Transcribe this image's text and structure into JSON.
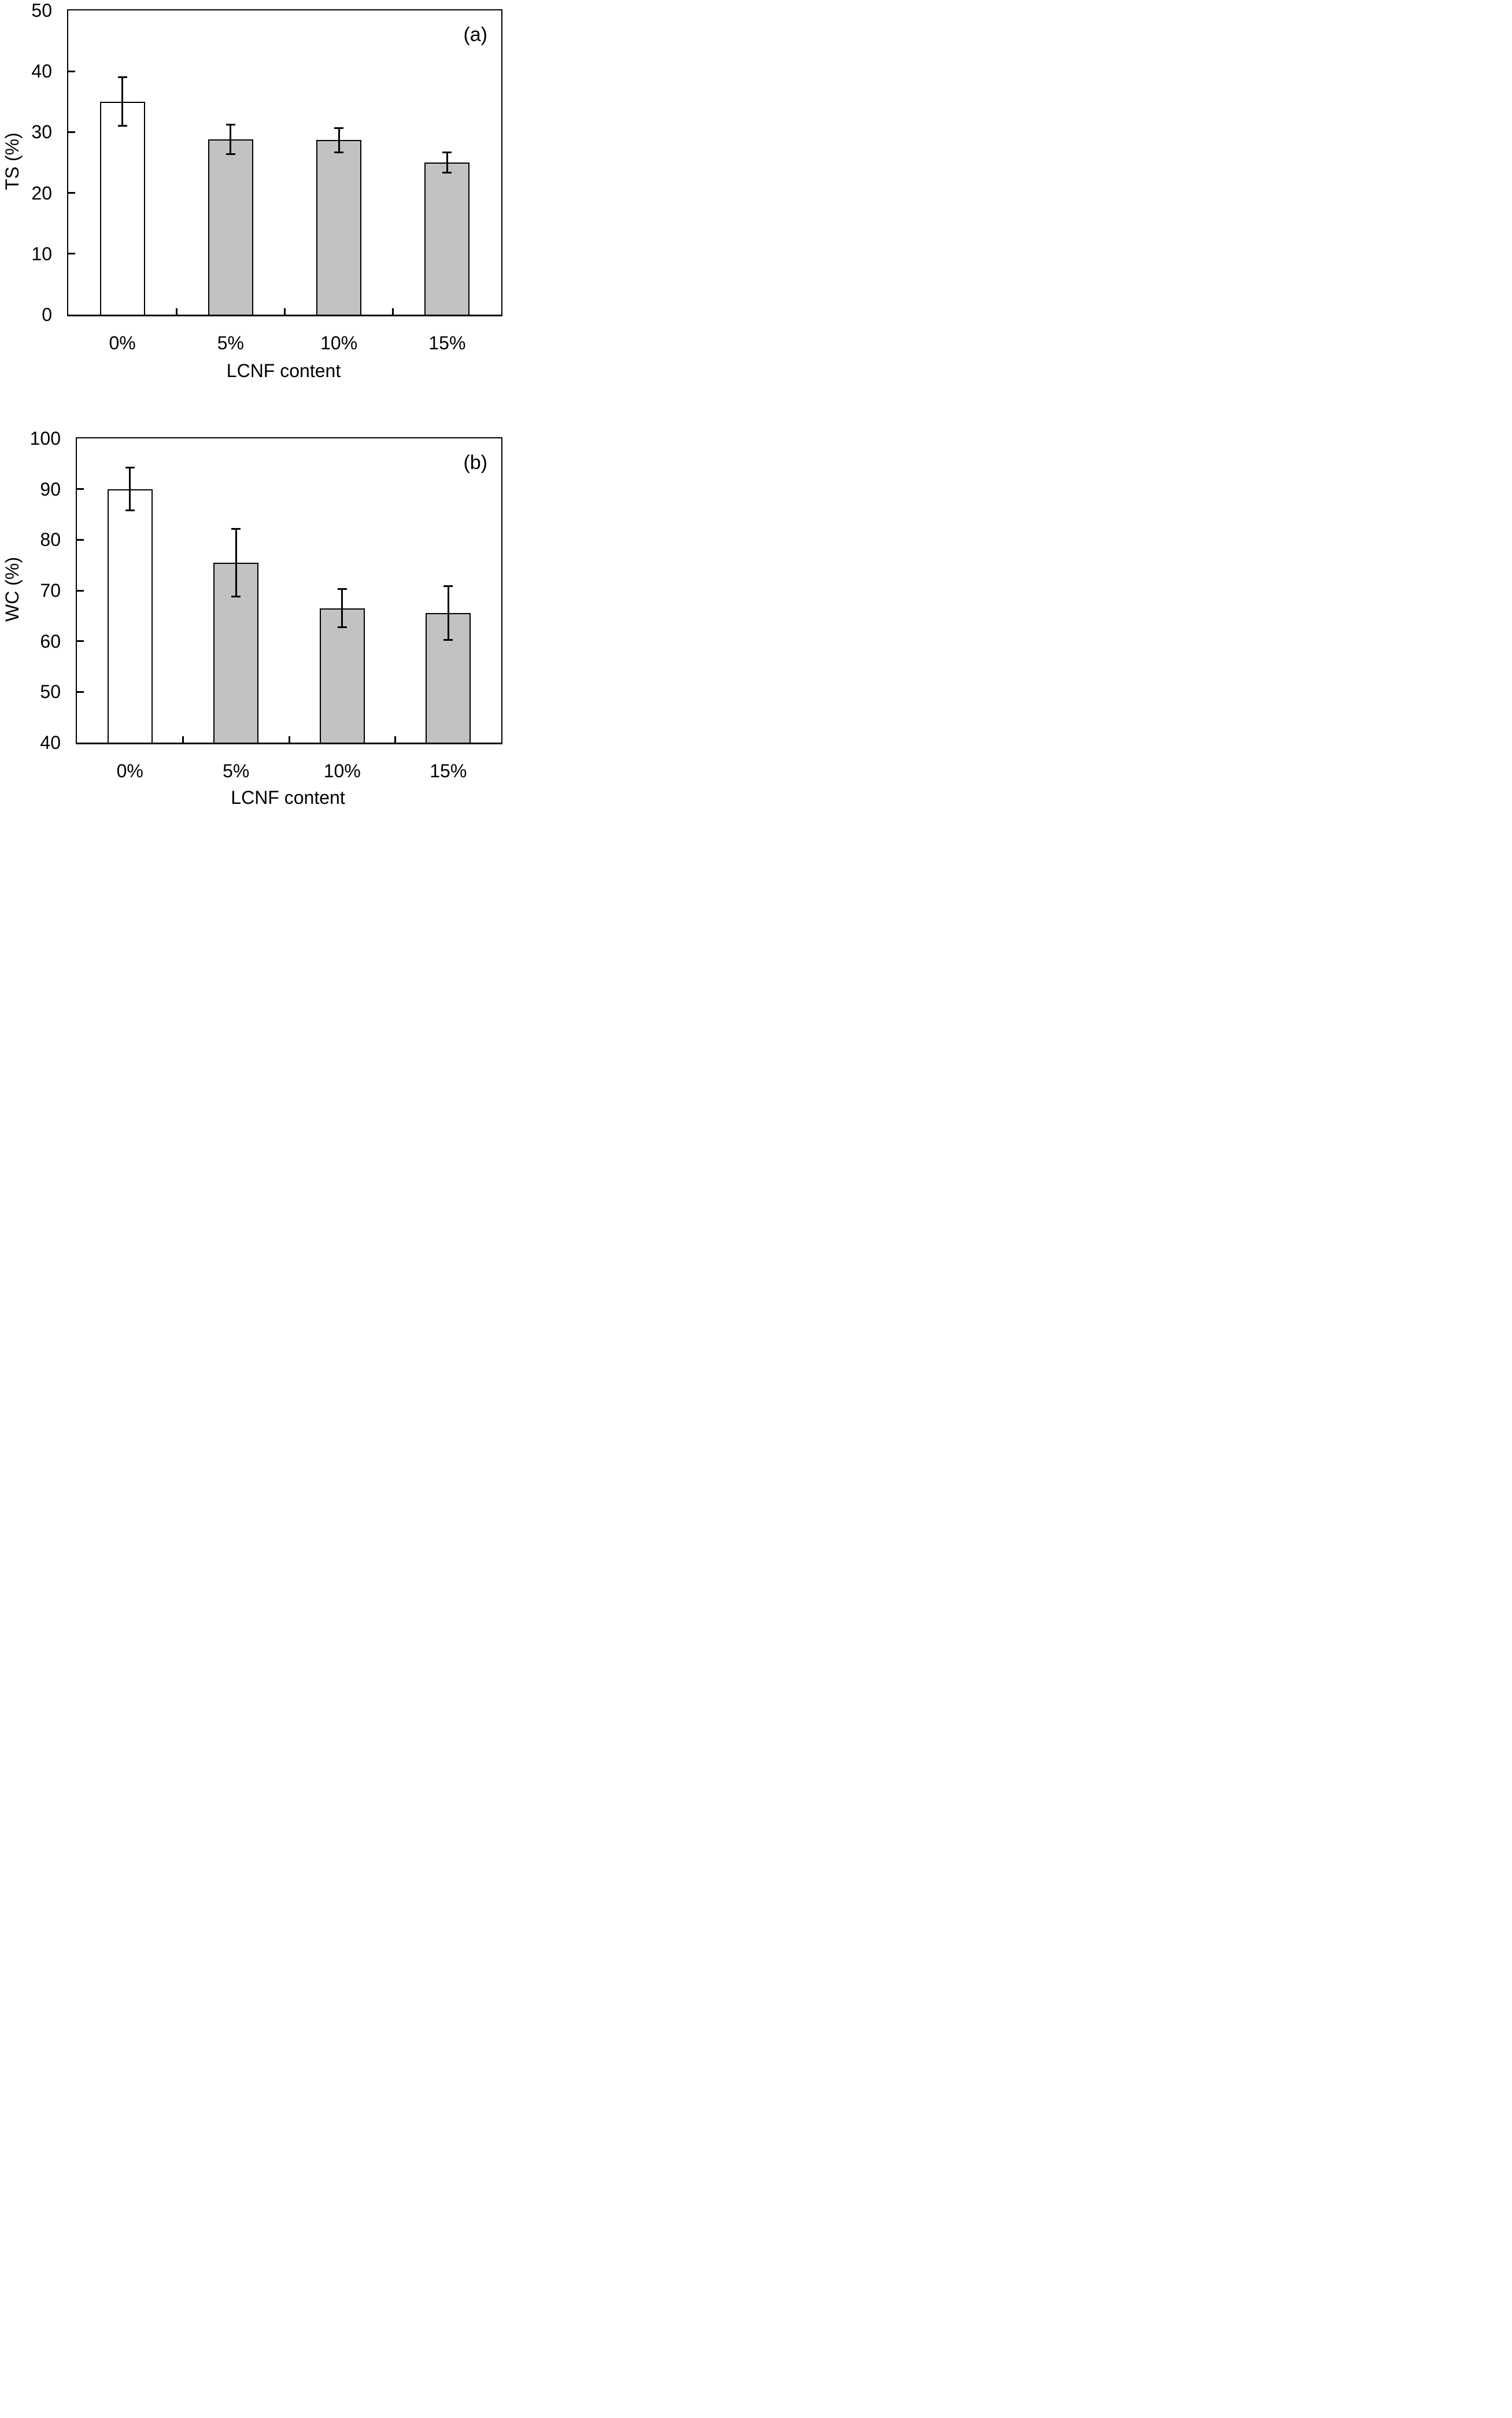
{
  "figure": {
    "background": "#ffffff",
    "text_color": "#000000",
    "bar_outline_color": "#000000",
    "gray_bar_fill": "#c2c2c2",
    "white_bar_fill": "#ffffff"
  },
  "chart_data": [
    {
      "type": "bar",
      "panel_label": "(a)",
      "title": "",
      "xlabel": "LCNF content",
      "ylabel": "TS (%)",
      "categories": [
        "0%",
        "5%",
        "10%",
        "15%"
      ],
      "values": [
        35.0,
        28.8,
        28.7,
        25.0
      ],
      "errors": [
        4.0,
        2.4,
        2.0,
        1.7
      ],
      "bar_fills": [
        "#ffffff",
        "#c2c2c2",
        "#c2c2c2",
        "#c2c2c2"
      ],
      "ylim": [
        0,
        50
      ],
      "yticks": [
        0,
        10,
        20,
        30,
        40,
        50
      ],
      "grid": false,
      "legend": null
    },
    {
      "type": "bar",
      "panel_label": "(b)",
      "title": "",
      "xlabel": "LCNF content",
      "ylabel": "WC (%)",
      "categories": [
        "0%",
        "5%",
        "10%",
        "15%"
      ],
      "values": [
        90.0,
        75.5,
        66.5,
        65.5
      ],
      "errors": [
        4.2,
        6.7,
        3.8,
        5.3
      ],
      "bar_fills": [
        "#ffffff",
        "#c2c2c2",
        "#c2c2c2",
        "#c2c2c2"
      ],
      "ylim": [
        40,
        100
      ],
      "yticks": [
        40,
        50,
        60,
        70,
        80,
        90,
        100
      ],
      "grid": false,
      "legend": null
    }
  ]
}
